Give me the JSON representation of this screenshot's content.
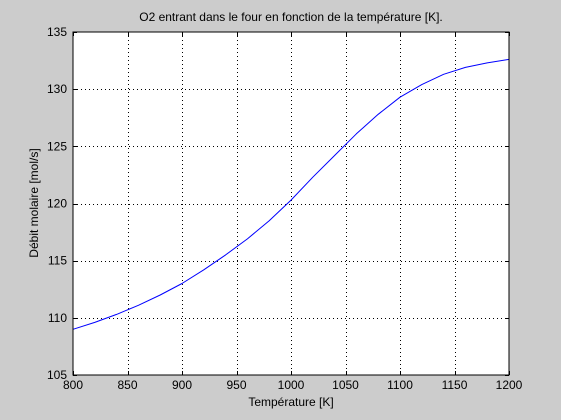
{
  "chart_data": {
    "type": "line",
    "title": "O2 entrant dans le four en fonction de la température [K].",
    "xlabel": "Température [K]",
    "ylabel": "Débit molaire [mol/s]",
    "xlim": [
      800,
      1200
    ],
    "ylim": [
      105,
      135
    ],
    "xticks": [
      800,
      850,
      900,
      950,
      1000,
      1050,
      1100,
      1150,
      1200
    ],
    "yticks": [
      105,
      110,
      115,
      120,
      125,
      130,
      135
    ],
    "grid": true,
    "series": [
      {
        "color": "#0000ff",
        "x": [
          800,
          820,
          840,
          860,
          880,
          900,
          920,
          940,
          960,
          980,
          1000,
          1020,
          1040,
          1060,
          1080,
          1100,
          1120,
          1140,
          1160,
          1180,
          1200
        ],
        "y": [
          109.0,
          109.6,
          110.3,
          111.1,
          112.0,
          113.0,
          114.2,
          115.5,
          116.9,
          118.5,
          120.3,
          122.3,
          124.2,
          126.1,
          127.8,
          129.3,
          130.4,
          131.3,
          131.9,
          132.3,
          132.6
        ]
      }
    ]
  }
}
